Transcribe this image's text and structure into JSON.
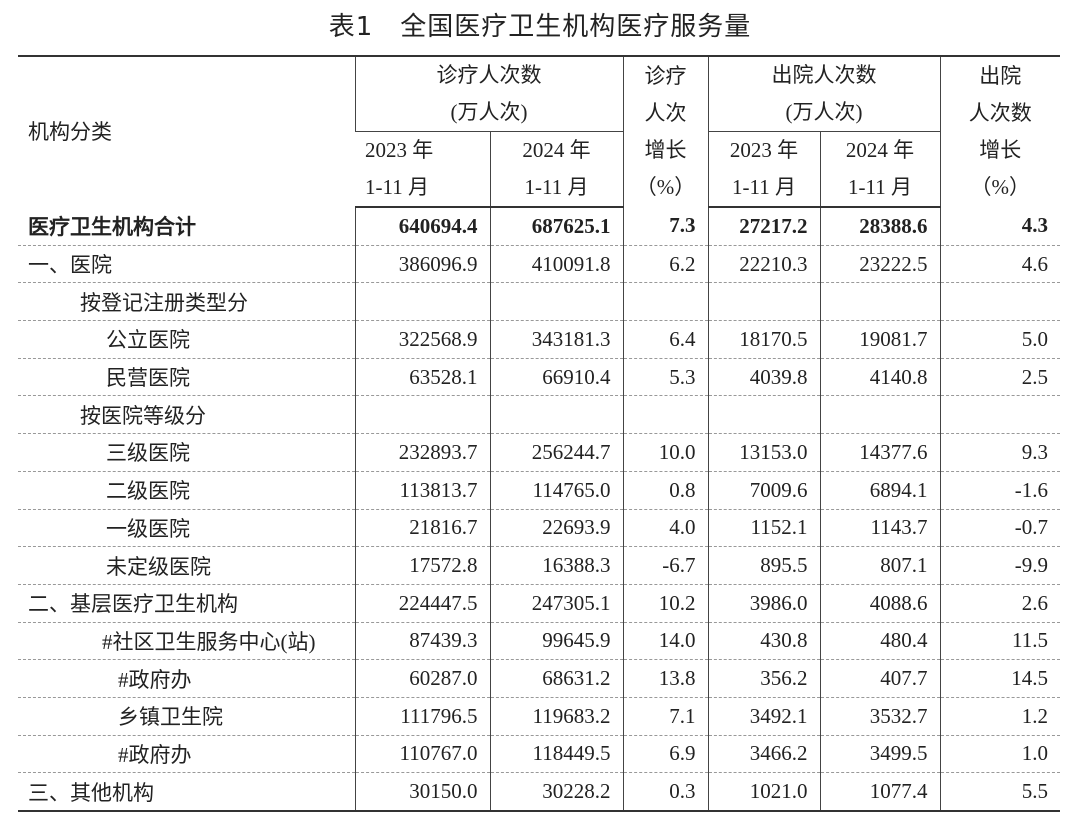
{
  "title": "表1　全国医疗卫生机构医疗服务量",
  "table": {
    "header": {
      "category": "机构分类",
      "visits": [
        "诊疗人次数",
        "(万人次)"
      ],
      "visits_growth": [
        "诊疗",
        "人次",
        "增长",
        "（%）"
      ],
      "discharges": [
        "出院人次数",
        "(万人次)"
      ],
      "discharges_growth": [
        "出院",
        "人次数",
        "增长",
        "（%）"
      ],
      "periods": [
        [
          "2023 年",
          "1-11 月"
        ],
        [
          "2024 年",
          "1-11 月"
        ],
        [
          "2023 年",
          "1-11 月"
        ],
        [
          "2024 年",
          "1-11 月"
        ]
      ]
    },
    "rows": [
      [
        "医疗卫生机构合计",
        "640694.4",
        "687625.1",
        "7.3",
        "27217.2",
        "28388.6",
        "4.3"
      ],
      [
        "一、医院",
        "386096.9",
        "410091.8",
        "6.2",
        "22210.3",
        "23222.5",
        "4.6"
      ],
      [
        "按登记注册类型分"
      ],
      [
        "公立医院",
        "322568.9",
        "343181.3",
        "6.4",
        "18170.5",
        "19081.7",
        "5.0"
      ],
      [
        "民营医院",
        "63528.1",
        "66910.4",
        "5.3",
        "4039.8",
        "4140.8",
        "2.5"
      ],
      [
        "按医院等级分"
      ],
      [
        "三级医院",
        "232893.7",
        "256244.7",
        "10.0",
        "13153.0",
        "14377.6",
        "9.3"
      ],
      [
        "二级医院",
        "113813.7",
        "114765.0",
        "0.8",
        "7009.6",
        "6894.1",
        "-1.6"
      ],
      [
        "一级医院",
        "21816.7",
        "22693.9",
        "4.0",
        "1152.1",
        "1143.7",
        "-0.7"
      ],
      [
        "未定级医院",
        "17572.8",
        "16388.3",
        "-6.7",
        "895.5",
        "807.1",
        "-9.9"
      ],
      [
        "二、基层医疗卫生机构",
        "224447.5",
        "247305.1",
        "10.2",
        "3986.0",
        "4088.6",
        "2.6"
      ],
      [
        "#社区卫生服务中心(站)",
        "87439.3",
        "99645.9",
        "14.0",
        "430.8",
        "480.4",
        "11.5"
      ],
      [
        "#政府办",
        "60287.0",
        "68631.2",
        "13.8",
        "356.2",
        "407.7",
        "14.5"
      ],
      [
        "乡镇卫生院",
        "111796.5",
        "119683.2",
        "7.1",
        "3492.1",
        "3532.7",
        "1.2"
      ],
      [
        "#政府办",
        "110767.0",
        "118449.5",
        "6.9",
        "3466.2",
        "3499.5",
        "1.0"
      ],
      [
        "三、其他机构",
        "30150.0",
        "30228.2",
        "0.3",
        "1021.0",
        "1077.4",
        "5.5"
      ]
    ]
  }
}
